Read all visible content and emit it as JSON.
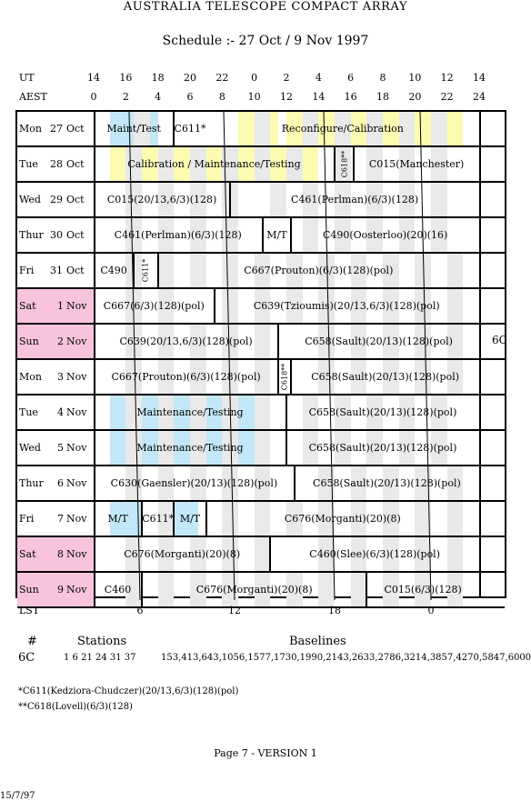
{
  "title": "AUSTRALIA TELESCOPE COMPACT ARRAY",
  "subtitle": "Schedule :- 27 Oct / 9 Nov 1997",
  "axes": {
    "ut_label": "UT",
    "ut_ticks": [
      "14",
      "16",
      "18",
      "20",
      "22",
      "0",
      "2",
      "4",
      "6",
      "8",
      "10",
      "12",
      "14"
    ],
    "aest_label": "AEST",
    "aest_ticks": [
      "0",
      "2",
      "4",
      "6",
      "8",
      "10",
      "12",
      "14",
      "16",
      "18",
      "20",
      "22",
      "24"
    ],
    "lst_label": "LST",
    "lst_ticks": [
      "6",
      "12",
      "18",
      "0"
    ]
  },
  "config_label": "6C",
  "colors": {
    "maintenance": "#c2e7f7",
    "reconfig": "#fdfbb0",
    "weekend": "#f8c4dd",
    "night": "#e9e9e9"
  },
  "rows": [
    {
      "d": "Mon",
      "n": "27",
      "m": "Oct",
      "we": false,
      "stripes": [
        [
          1,
          2.5,
          "m"
        ],
        [
          3.5,
          4,
          "m"
        ],
        [
          2.5,
          3.5,
          "n"
        ],
        [
          9,
          10,
          "r"
        ],
        [
          11,
          11.5,
          "r"
        ],
        [
          12,
          13,
          "r"
        ],
        [
          14,
          15,
          "r"
        ],
        [
          16,
          17,
          "r"
        ],
        [
          18,
          19,
          "r"
        ],
        [
          20,
          21,
          "r"
        ],
        [
          22,
          23,
          "r"
        ],
        [
          10,
          11,
          "n"
        ],
        [
          13,
          14,
          "n"
        ],
        [
          15,
          16,
          "n"
        ],
        [
          17,
          18,
          "n"
        ],
        [
          19,
          20,
          "n"
        ],
        [
          21,
          22,
          "n"
        ]
      ],
      "segs": [
        [
          0,
          5,
          "Maint/Test"
        ],
        [
          5,
          7,
          "C611*"
        ],
        [
          7,
          24,
          "Reconfigure/Calibration"
        ]
      ],
      "seps": [
        5
      ]
    },
    {
      "d": "Tue",
      "n": "28",
      "m": "Oct",
      "we": false,
      "stripes": [
        [
          1,
          2,
          "r"
        ],
        [
          3,
          4,
          "r"
        ],
        [
          5,
          6,
          "r"
        ],
        [
          7,
          8,
          "r"
        ],
        [
          9,
          10,
          "r"
        ],
        [
          11,
          12,
          "r"
        ],
        [
          13,
          14,
          "r"
        ],
        [
          2,
          3,
          "n"
        ],
        [
          4,
          5,
          "n"
        ],
        [
          6,
          7,
          "n"
        ],
        [
          8,
          9,
          "n"
        ],
        [
          10,
          11,
          "n"
        ],
        [
          12,
          13,
          "n"
        ],
        [
          15,
          16,
          "n"
        ],
        [
          17,
          18,
          "n"
        ],
        [
          19,
          20,
          "n"
        ],
        [
          21,
          22,
          "n"
        ]
      ],
      "segs": [
        [
          0,
          15,
          "Calibration / Maintenance/Testing"
        ],
        [
          16.2,
          24,
          "C015(Manchester)"
        ]
      ],
      "vsegs": [
        [
          15,
          16.2,
          "C618**"
        ]
      ],
      "seps": [
        15,
        16.2
      ]
    },
    {
      "d": "Wed",
      "n": "29",
      "m": "Oct",
      "we": false,
      "stripes": [
        [
          2,
          3,
          "n"
        ],
        [
          4,
          5,
          "n"
        ],
        [
          6,
          7,
          "n"
        ],
        [
          8,
          9,
          "n"
        ],
        [
          11,
          12,
          "n"
        ],
        [
          13,
          14,
          "n"
        ],
        [
          15,
          16,
          "n"
        ],
        [
          17,
          18,
          "n"
        ],
        [
          19,
          20,
          "n"
        ],
        [
          21,
          22,
          "n"
        ]
      ],
      "segs": [
        [
          0,
          8.5,
          "C015(20/13,6/3)(128)"
        ],
        [
          8.5,
          24,
          "C461(Perlman)(6/3)(128)"
        ]
      ],
      "seps": [
        8.5
      ]
    },
    {
      "d": "Thur",
      "n": "30",
      "m": "Oct",
      "we": false,
      "stripes": [
        [
          2,
          3,
          "n"
        ],
        [
          4,
          5,
          "n"
        ],
        [
          6,
          7,
          "n"
        ],
        [
          8,
          9,
          "n"
        ],
        [
          13,
          14,
          "n"
        ],
        [
          15,
          16,
          "n"
        ],
        [
          17,
          18,
          "n"
        ],
        [
          19,
          20,
          "n"
        ],
        [
          21,
          22,
          "n"
        ]
      ],
      "segs": [
        [
          0,
          10.5,
          "C461(Perlman)(6/3)(128)"
        ],
        [
          10.5,
          12.3,
          "M/T"
        ],
        [
          12.3,
          24,
          "C490(Oosterloo)(20)(16)"
        ]
      ],
      "seps": [
        10.5,
        12.3
      ]
    },
    {
      "d": "Fri",
      "n": "31",
      "m": "Oct",
      "we": false,
      "stripes": [
        [
          2,
          3,
          "n"
        ],
        [
          4,
          5,
          "n"
        ],
        [
          6,
          7,
          "n"
        ],
        [
          8,
          9,
          "n"
        ],
        [
          10,
          11,
          "n"
        ],
        [
          12,
          13,
          "n"
        ],
        [
          14,
          15,
          "n"
        ],
        [
          16,
          17,
          "n"
        ],
        [
          18,
          19,
          "n"
        ],
        [
          20,
          21,
          "n"
        ],
        [
          22,
          23,
          "n"
        ]
      ],
      "segs": [
        [
          0,
          2.5,
          "C490"
        ],
        [
          4,
          24,
          "C667(Prouton)(6/3)(128)(pol)"
        ]
      ],
      "vsegs": [
        [
          2.5,
          4,
          "C611*"
        ]
      ],
      "seps": [
        2.5,
        4
      ]
    },
    {
      "d": "Sat",
      "n": "1",
      "m": "Nov",
      "we": true,
      "stripes": [
        [
          2,
          3,
          "n"
        ],
        [
          4,
          5,
          "n"
        ],
        [
          8,
          9,
          "n"
        ],
        [
          10,
          11,
          "n"
        ],
        [
          12,
          13,
          "n"
        ],
        [
          14,
          15,
          "n"
        ],
        [
          16,
          17,
          "n"
        ],
        [
          18,
          19,
          "n"
        ],
        [
          20,
          21,
          "n"
        ],
        [
          22,
          23,
          "n"
        ]
      ],
      "segs": [
        [
          0,
          7.5,
          "C667(6/3)(128)(pol)"
        ],
        [
          7.5,
          24,
          "C639(Tzioumis)(20/13,6/3)(128)(pol)"
        ]
      ],
      "seps": [
        7.5
      ]
    },
    {
      "d": "Sun",
      "n": "2",
      "m": "Nov",
      "we": true,
      "stripes": [
        [
          2,
          3,
          "n"
        ],
        [
          4,
          5,
          "n"
        ],
        [
          6,
          7,
          "n"
        ],
        [
          8,
          9,
          "n"
        ],
        [
          10,
          11,
          "n"
        ],
        [
          14,
          15,
          "n"
        ],
        [
          16,
          17,
          "n"
        ],
        [
          18,
          19,
          "n"
        ],
        [
          20,
          21,
          "n"
        ],
        [
          22,
          23,
          "n"
        ]
      ],
      "segs": [
        [
          0,
          11.5,
          "C639(20/13,6/3)(128)(pol)"
        ],
        [
          11.5,
          24,
          "C658(Sault)(20/13)(128)(pol)"
        ]
      ],
      "seps": [
        11.5
      ]
    },
    {
      "d": "Mon",
      "n": "3",
      "m": "Nov",
      "we": false,
      "stripes": [
        [
          2,
          3,
          "n"
        ],
        [
          4,
          5,
          "n"
        ],
        [
          6,
          7,
          "n"
        ],
        [
          8,
          9,
          "n"
        ],
        [
          10,
          11,
          "n"
        ],
        [
          14,
          15,
          "n"
        ],
        [
          16,
          17,
          "n"
        ],
        [
          18,
          19,
          "n"
        ],
        [
          20,
          21,
          "n"
        ],
        [
          22,
          23,
          "n"
        ]
      ],
      "segs": [
        [
          0,
          11.5,
          "C667(Prouton)(6/3)(128)(pol)"
        ],
        [
          12.3,
          24,
          "C658(Sault)(20/13)(128)(pol)"
        ]
      ],
      "vsegs": [
        [
          11.5,
          12.3,
          "C618**"
        ]
      ],
      "seps": [
        11.5,
        12.3
      ]
    },
    {
      "d": "Tue",
      "n": "4",
      "m": "Nov",
      "we": false,
      "stripes": [
        [
          1,
          2,
          "m"
        ],
        [
          3,
          4,
          "m"
        ],
        [
          5,
          6,
          "m"
        ],
        [
          7,
          8,
          "m"
        ],
        [
          9,
          10,
          "m"
        ],
        [
          2,
          3,
          "n"
        ],
        [
          4,
          5,
          "n"
        ],
        [
          6,
          7,
          "n"
        ],
        [
          8,
          9,
          "n"
        ],
        [
          10,
          11,
          "n"
        ],
        [
          13,
          14,
          "n"
        ],
        [
          15,
          16,
          "n"
        ],
        [
          17,
          18,
          "n"
        ],
        [
          19,
          20,
          "n"
        ],
        [
          21,
          22,
          "n"
        ]
      ],
      "segs": [
        [
          0,
          12,
          "Maintenance/Testing"
        ],
        [
          12,
          24,
          "C658(Sault)(20/13)(128)(pol)"
        ]
      ],
      "seps": [
        12
      ]
    },
    {
      "d": "Wed",
      "n": "5",
      "m": "Nov",
      "we": false,
      "stripes": [
        [
          1,
          2,
          "m"
        ],
        [
          3,
          4,
          "m"
        ],
        [
          5,
          6,
          "m"
        ],
        [
          7,
          8,
          "m"
        ],
        [
          9,
          10,
          "m"
        ],
        [
          2,
          3,
          "n"
        ],
        [
          4,
          5,
          "n"
        ],
        [
          6,
          7,
          "n"
        ],
        [
          8,
          9,
          "n"
        ],
        [
          10,
          11,
          "n"
        ],
        [
          13,
          14,
          "n"
        ],
        [
          15,
          16,
          "n"
        ],
        [
          17,
          18,
          "n"
        ],
        [
          19,
          20,
          "n"
        ],
        [
          21,
          22,
          "n"
        ]
      ],
      "segs": [
        [
          0,
          12,
          "Maintenance/Testing"
        ],
        [
          12,
          24,
          "C658(Sault)(20/13)(128)(pol)"
        ]
      ],
      "seps": [
        12
      ]
    },
    {
      "d": "Thur",
      "n": "6",
      "m": "Nov",
      "we": false,
      "stripes": [
        [
          2,
          3,
          "n"
        ],
        [
          4,
          5,
          "n"
        ],
        [
          6,
          7,
          "n"
        ],
        [
          8,
          9,
          "n"
        ],
        [
          10,
          11,
          "n"
        ],
        [
          14,
          15,
          "n"
        ],
        [
          16,
          17,
          "n"
        ],
        [
          18,
          19,
          "n"
        ],
        [
          20,
          21,
          "n"
        ],
        [
          22,
          23,
          "n"
        ]
      ],
      "segs": [
        [
          0,
          12.5,
          "C630(Gaensler)(20/13)(128)(pol)"
        ],
        [
          12.5,
          24,
          "C658(Sault)(20/13)(128)(pol)"
        ]
      ],
      "seps": [
        12.5
      ]
    },
    {
      "d": "Fri",
      "n": "7",
      "m": "Nov",
      "we": false,
      "stripes": [
        [
          1,
          3,
          "m"
        ],
        [
          5,
          6.5,
          "m"
        ],
        [
          4,
          5,
          "n"
        ],
        [
          8,
          9,
          "n"
        ],
        [
          10,
          11,
          "n"
        ],
        [
          12,
          13,
          "n"
        ],
        [
          14,
          15,
          "n"
        ],
        [
          16,
          17,
          "n"
        ],
        [
          18,
          19,
          "n"
        ],
        [
          20,
          21,
          "n"
        ],
        [
          22,
          23,
          "n"
        ]
      ],
      "segs": [
        [
          0,
          3,
          "M/T"
        ],
        [
          3,
          5,
          "C611*"
        ],
        [
          5,
          7,
          "M/T"
        ],
        [
          7,
          24,
          "C676(Morganti)(20)(8)"
        ]
      ],
      "seps": [
        3,
        5,
        7
      ]
    },
    {
      "d": "Sat",
      "n": "8",
      "m": "Nov",
      "we": true,
      "stripes": [
        [
          2,
          3,
          "n"
        ],
        [
          4,
          5,
          "n"
        ],
        [
          6,
          7,
          "n"
        ],
        [
          8,
          9,
          "n"
        ],
        [
          10,
          11,
          "n"
        ],
        [
          14,
          15,
          "n"
        ],
        [
          16,
          17,
          "n"
        ],
        [
          18,
          19,
          "n"
        ],
        [
          20,
          21,
          "n"
        ],
        [
          22,
          23,
          "n"
        ]
      ],
      "segs": [
        [
          0,
          11,
          "C676(Morganti)(20)(8)"
        ],
        [
          11,
          24,
          "C460(Slee)(6/3)(128)(pol)"
        ]
      ],
      "seps": [
        11
      ]
    },
    {
      "d": "Sun",
      "n": "9",
      "m": "Nov",
      "we": true,
      "stripes": [
        [
          2,
          3,
          "n"
        ],
        [
          4,
          5,
          "n"
        ],
        [
          6,
          7,
          "n"
        ],
        [
          8,
          9,
          "n"
        ],
        [
          10,
          11,
          "n"
        ],
        [
          12,
          13,
          "n"
        ],
        [
          14,
          15,
          "n"
        ],
        [
          16,
          17,
          "n"
        ],
        [
          18,
          19,
          "n"
        ],
        [
          20,
          21,
          "n"
        ],
        [
          22,
          23,
          "n"
        ]
      ],
      "segs": [
        [
          0,
          3,
          "C460"
        ],
        [
          3,
          17,
          "C676(Morganti)(20)(8)"
        ],
        [
          17,
          24,
          "C015(6/3)(128)"
        ]
      ],
      "seps": [
        3,
        17
      ]
    }
  ],
  "stations": {
    "hash_label": "#",
    "stations_header": "Stations",
    "baselines_header": "Baselines",
    "config": "6C",
    "stations": "1 6 21 24 31 37",
    "baselines": "153,413,643,1056,1577,1730,1990,2143,2633,2786,3214,3857,4270,5847,6000,"
  },
  "notes": [
    "*C611(Kedziora-Chudczer)(20/13,6/3)(128)(pol)",
    "**C618(Lovell)(6/3)(128)"
  ],
  "footer": {
    "page": "Page 7 - VERSION 1",
    "date": "15/7/97"
  }
}
